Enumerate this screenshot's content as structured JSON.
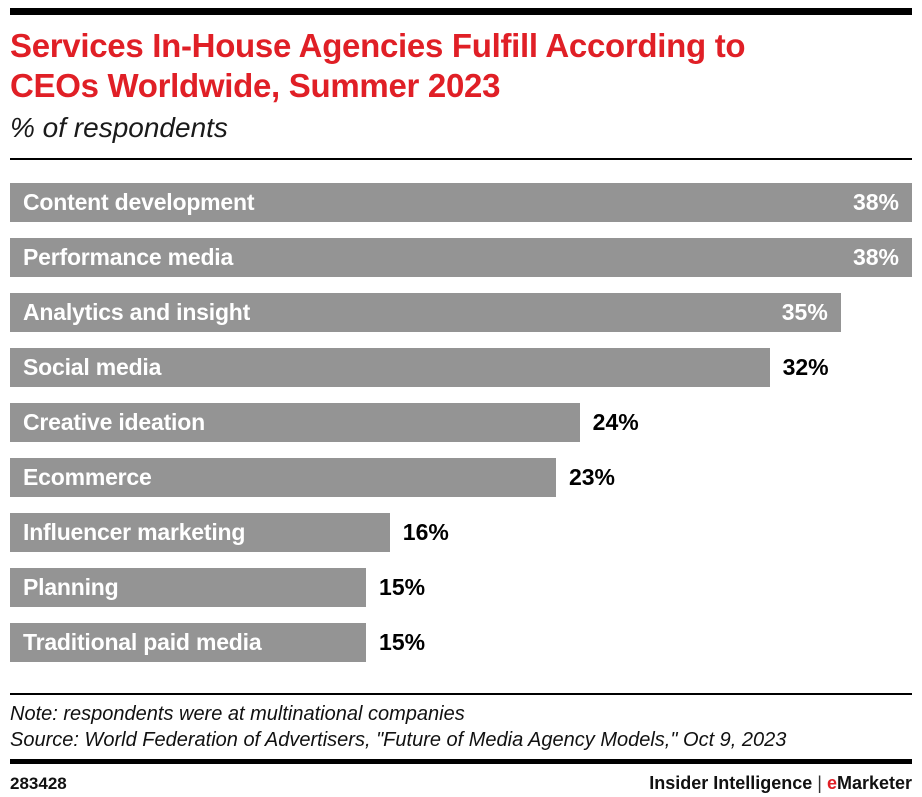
{
  "header": {
    "title_line1": "Services In-House Agencies Fulfill According to",
    "title_line2": "CEOs Worldwide, Summer 2023",
    "subtitle": "% of respondents",
    "title_color": "#e01f26"
  },
  "chart_data": {
    "type": "bar",
    "orientation": "horizontal",
    "title": "Services In-House Agencies Fulfill According to CEOs Worldwide, Summer 2023",
    "subtitle": "% of respondents",
    "unit": "% of respondents",
    "value_suffix": "%",
    "axis_max": 38,
    "grid": false,
    "legend": false,
    "bar_color": "#949494",
    "categories": [
      "Content development",
      "Performance media",
      "Analytics and insight",
      "Social media",
      "Creative ideation",
      "Ecommerce",
      "Influencer marketing",
      "Planning",
      "Traditional paid media"
    ],
    "values": [
      38,
      38,
      35,
      32,
      24,
      23,
      16,
      15,
      15
    ],
    "value_labels": [
      "38%",
      "38%",
      "35%",
      "32%",
      "24%",
      "23%",
      "16%",
      "15%",
      "15%"
    ],
    "value_label_inside": [
      true,
      true,
      true,
      false,
      false,
      false,
      false,
      false,
      false
    ]
  },
  "footnotes": {
    "note": "Note: respondents were at multinational companies",
    "source": "Source: World Federation of Advertisers, \"Future of Media Agency Models,\" Oct 9, 2023"
  },
  "footer": {
    "chart_id": "283428",
    "brand_left": "Insider Intelligence",
    "brand_divider": "|",
    "brand_e": "e",
    "brand_rest": "Marketer",
    "accent_red": "#e01f26"
  }
}
